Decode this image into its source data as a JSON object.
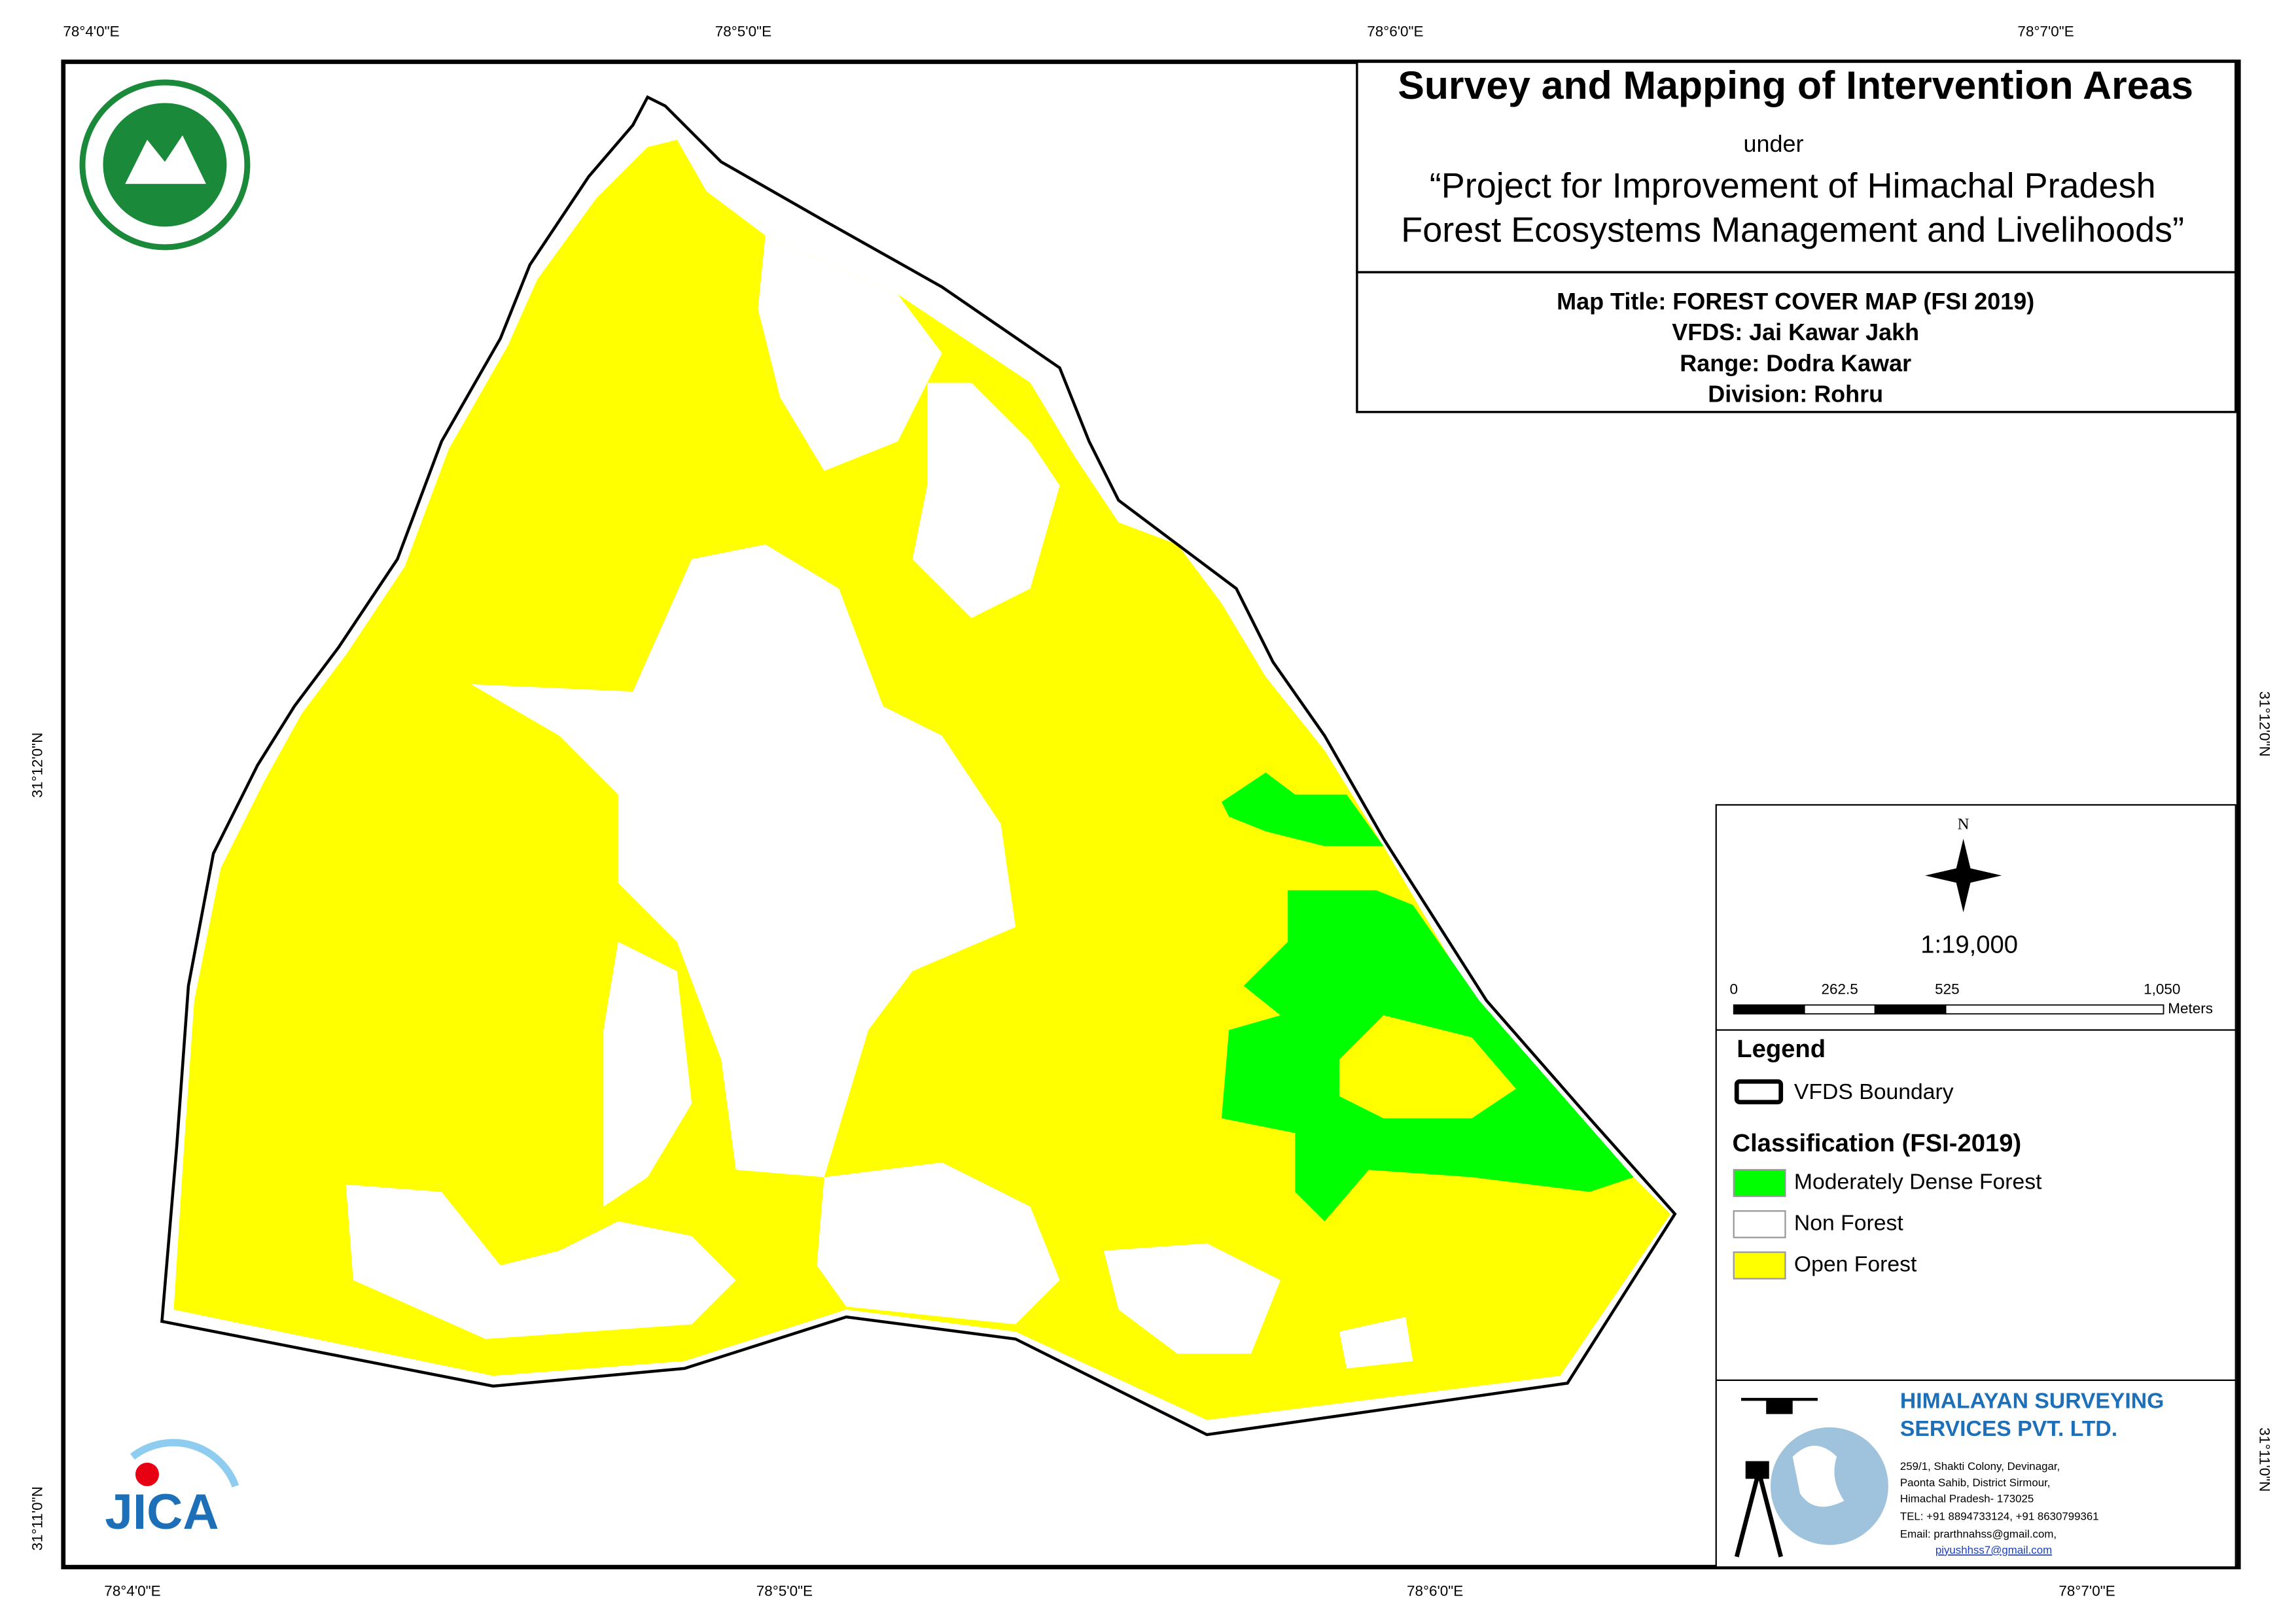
{
  "coordinates": {
    "top": [
      "78°4'0\"E",
      "78°5'0\"E",
      "78°6'0\"E",
      "78°7'0\"E"
    ],
    "bottom": [
      "78°4'0\"E",
      "78°5'0\"E",
      "78°6'0\"E",
      "78°7'0\"E"
    ],
    "left": [
      "31°12'0\"N",
      "31°11'0\"N"
    ],
    "right": [
      "31°12'0\"N",
      "31°11'0\"N"
    ]
  },
  "header": {
    "title": "Survey and Mapping of Intervention Areas",
    "under": "under",
    "project": [
      "“Project for Improvement of Himachal Pradesh",
      "Forest Ecosystems Management and Livelihoods”"
    ]
  },
  "map_info": [
    "Map Title: FOREST COVER MAP (FSI 2019)",
    "VFDS: Jai Kawar Jakh",
    "Range: Dodra Kawar",
    "Division: Rohru"
  ],
  "north": "N",
  "scale": "1:19,000",
  "scale_bar": {
    "labels": [
      "0",
      "262.5",
      "525",
      "1,050"
    ],
    "unit": "Meters"
  },
  "legend": {
    "title": "Legend",
    "boundary": "VFDS Boundary",
    "classification": "Classification (FSI-2019)",
    "classes": [
      "Moderately Dense Forest",
      "Non Forest",
      "Open Forest"
    ]
  },
  "company": {
    "name": [
      "HIMALAYAN SURVEYING",
      "SERVICES PVT. LTD."
    ],
    "address": [
      "259/1, Shakti Colony, Devinagar,",
      "Paonta Sahib, District Sirmour,",
      "Himachal Pradesh- 173025",
      "TEL: +91 8894733124, +91 8630799361",
      "Email: prarthnahss@gmail.com,"
    ],
    "email2": "piyushhss7@gmail.com"
  },
  "logo": "JICA"
}
